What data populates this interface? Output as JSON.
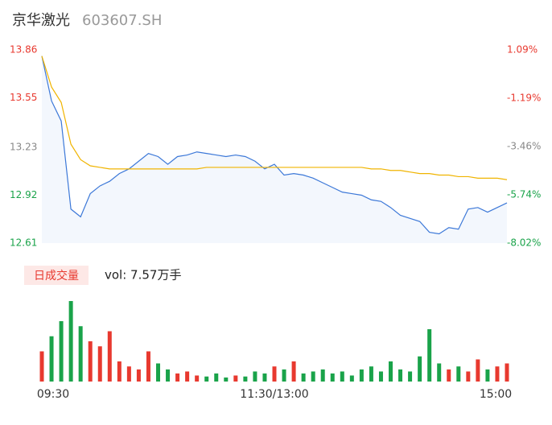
{
  "chart_data": {
    "type": "intraday",
    "title": "京华激光",
    "subtitle": "603607.SH",
    "categories": [
      "09:30",
      null,
      null,
      null,
      null,
      null,
      null,
      null,
      null,
      null,
      null,
      null,
      null,
      null,
      null,
      null,
      null,
      null,
      null,
      null,
      null,
      null,
      null,
      null,
      "11:30/13:00",
      null,
      null,
      null,
      null,
      null,
      null,
      null,
      null,
      null,
      null,
      null,
      null,
      null,
      null,
      null,
      null,
      null,
      null,
      null,
      null,
      null,
      null,
      null,
      "15:00"
    ],
    "series": [
      {
        "name": "price",
        "color": "#3c78d8",
        "values": [
          13.82,
          13.53,
          13.4,
          12.83,
          12.78,
          12.93,
          12.98,
          13.01,
          13.06,
          13.09,
          13.14,
          13.19,
          13.17,
          13.12,
          13.17,
          13.18,
          13.2,
          13.19,
          13.18,
          13.17,
          13.18,
          13.17,
          13.14,
          13.09,
          13.12,
          13.05,
          13.06,
          13.05,
          13.03,
          13.0,
          12.97,
          12.94,
          12.93,
          12.92,
          12.89,
          12.88,
          12.84,
          12.79,
          12.77,
          12.75,
          12.68,
          12.67,
          12.71,
          12.7,
          12.83,
          12.84,
          12.81,
          12.84,
          12.87
        ]
      },
      {
        "name": "average",
        "color": "#f0b400",
        "values": [
          13.82,
          13.62,
          13.52,
          13.25,
          13.15,
          13.11,
          13.1,
          13.09,
          13.09,
          13.09,
          13.09,
          13.09,
          13.09,
          13.09,
          13.09,
          13.09,
          13.09,
          13.1,
          13.1,
          13.1,
          13.1,
          13.1,
          13.1,
          13.1,
          13.1,
          13.1,
          13.1,
          13.1,
          13.1,
          13.1,
          13.1,
          13.1,
          13.1,
          13.1,
          13.09,
          13.09,
          13.08,
          13.08,
          13.07,
          13.06,
          13.06,
          13.05,
          13.05,
          13.04,
          13.04,
          13.03,
          13.03,
          13.03,
          13.02
        ]
      }
    ],
    "ylim": [
      12.61,
      13.86
    ],
    "yticks": [
      13.86,
      13.55,
      13.23,
      12.92,
      12.61
    ],
    "ytick_colors": [
      "#e8392f",
      "#e8392f",
      "#888888",
      "#1aa34a",
      "#1aa34a"
    ],
    "y2lim": [
      -8.02,
      1.09
    ],
    "y2ticks": [
      {
        "value": 1.09,
        "label": "1.09%"
      },
      {
        "value": -1.19,
        "label": "-1.19%"
      },
      {
        "value": -3.46,
        "label": "-3.46%"
      },
      {
        "value": -5.74,
        "label": "-5.74%"
      },
      {
        "value": -8.02,
        "label": "-8.02%"
      }
    ],
    "volume_button": "日成交量",
    "volume_text": "vol: 7.57万手",
    "volume": [
      30,
      45,
      60,
      80,
      55,
      40,
      35,
      50,
      20,
      15,
      12,
      30,
      18,
      12,
      8,
      10,
      6,
      5,
      8,
      4,
      6,
      5,
      10,
      8,
      15,
      12,
      20,
      8,
      10,
      12,
      8,
      10,
      6,
      12,
      15,
      10,
      20,
      12,
      10,
      25,
      52,
      18,
      12,
      15,
      10,
      22,
      12,
      15,
      18
    ],
    "up_color": "#e8392f",
    "down_color": "#1aa34a"
  }
}
